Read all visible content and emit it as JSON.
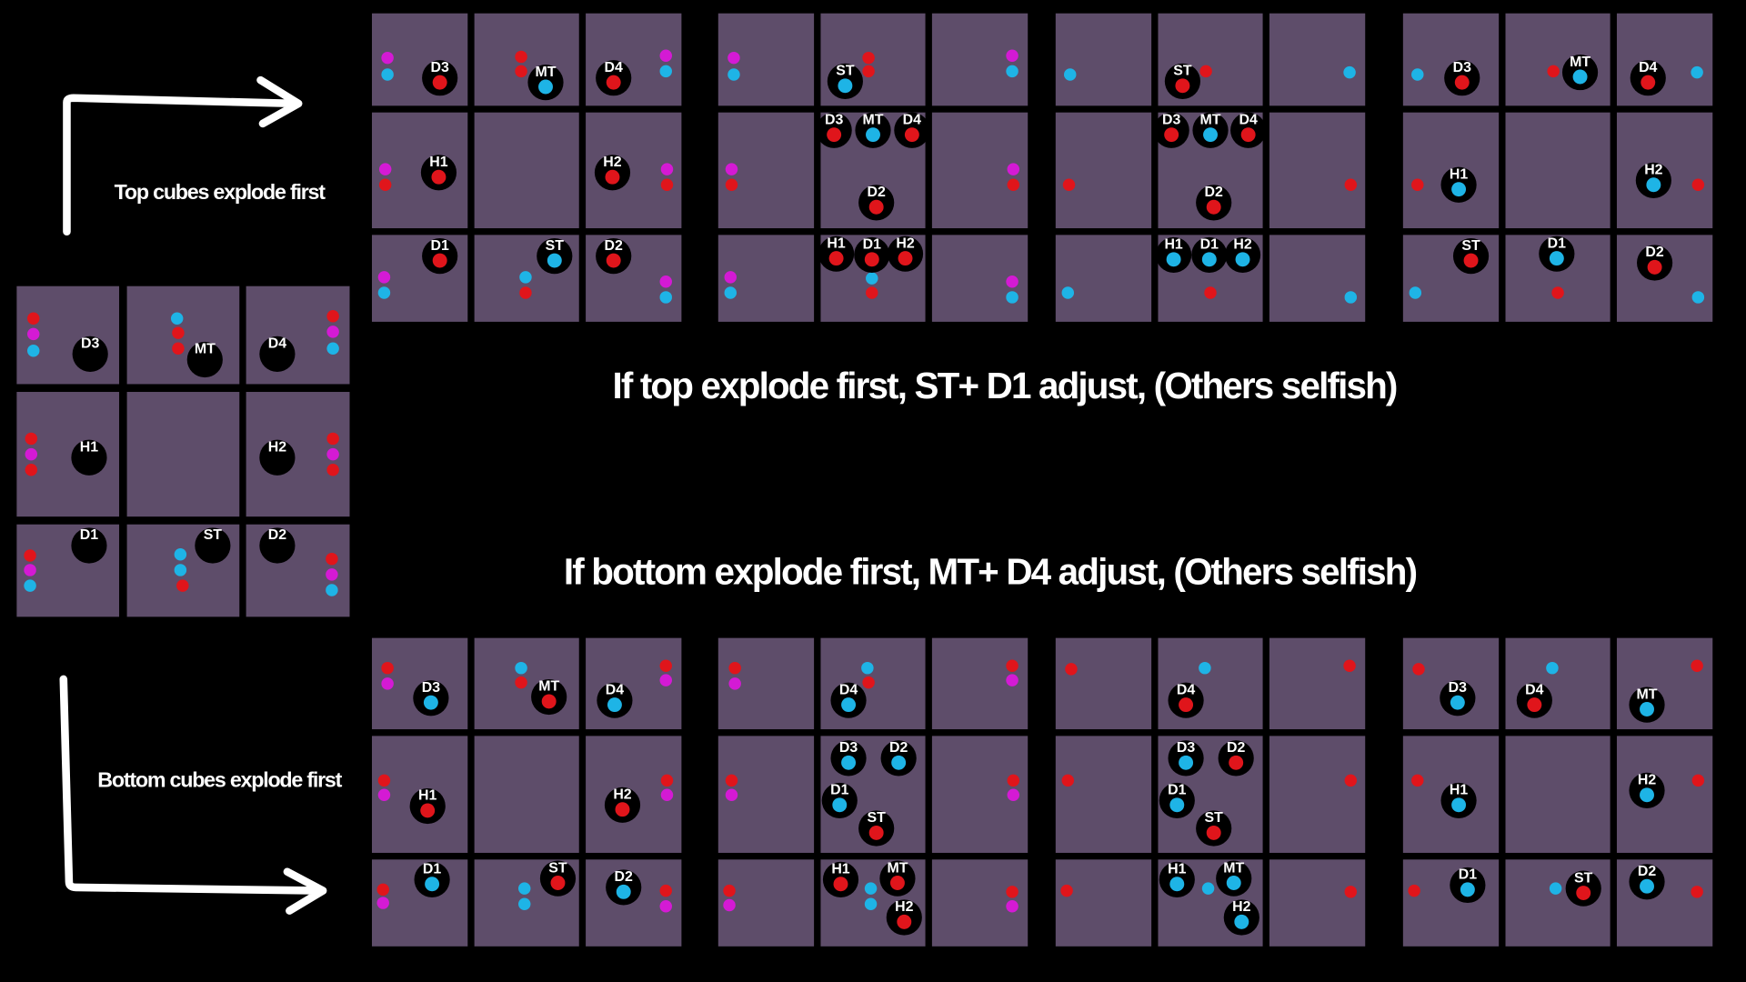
{
  "annotations": {
    "top_arrow_label": "Top cubes explode first",
    "bottom_arrow_label": "Bottom cubes explode first",
    "top_caption": "If top explode first, ST+ D1 adjust, (Others selfish)",
    "bottom_caption": "If bottom explode first, MT+ D4 adjust, (Others selfish)"
  },
  "base_grid": {
    "tokens": [
      "D3",
      "MT",
      "D4",
      "H1",
      "H2",
      "D1",
      "ST",
      "D2"
    ]
  },
  "top_grids": [
    {
      "tokens": [
        "D3",
        "MT",
        "D4",
        "H1",
        "H2",
        "D1",
        "ST",
        "D2"
      ]
    },
    {
      "tokens": [
        "ST",
        "D3",
        "MT",
        "D4",
        "D2",
        "H1",
        "D1",
        "H2"
      ]
    },
    {
      "tokens": [
        "ST",
        "D3",
        "MT",
        "D4",
        "D2",
        "H1",
        "D1",
        "H2"
      ]
    },
    {
      "tokens": [
        "D3",
        "MT",
        "D4",
        "H1",
        "H2",
        "ST",
        "D1",
        "D2"
      ]
    }
  ],
  "bottom_grids": [
    {
      "tokens": [
        "D3",
        "MT",
        "D4",
        "H1",
        "H2",
        "D1",
        "ST",
        "D2"
      ]
    },
    {
      "tokens": [
        "D4",
        "D3",
        "D2",
        "D1",
        "ST",
        "H1",
        "MT",
        "H2"
      ]
    },
    {
      "tokens": [
        "D4",
        "D3",
        "D2",
        "D1",
        "ST",
        "H1",
        "MT",
        "H2"
      ]
    },
    {
      "tokens": [
        "D3",
        "D4",
        "MT",
        "H1",
        "H2",
        "D1",
        "ST",
        "D2"
      ]
    }
  ]
}
